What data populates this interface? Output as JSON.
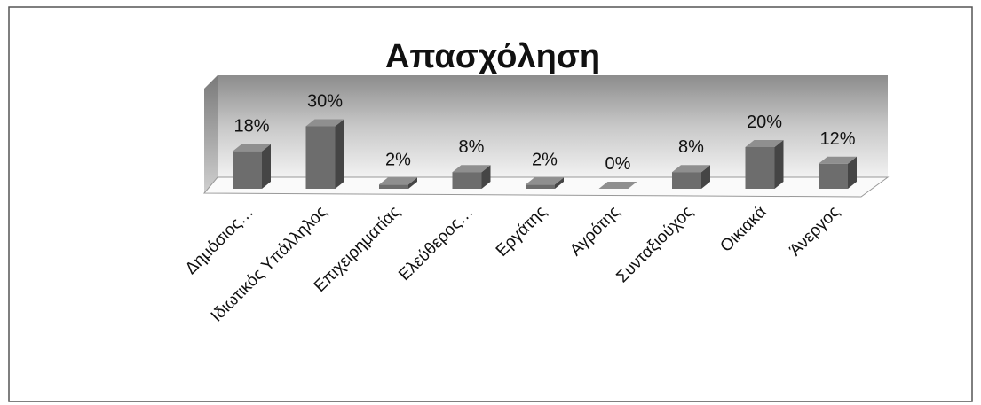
{
  "chart_data": {
    "type": "bar3d",
    "title": "Απασχόληση",
    "categories": [
      "Δημόσιος…",
      "Ιδιωτικός Υπάλληλος",
      "Επιχειρηματίας",
      "Ελεύθερος…",
      "Εργάτης",
      "Αγρότης",
      "Συνταξιούχος",
      "Οικιακά",
      "Άνεργος"
    ],
    "values": [
      18,
      30,
      2,
      8,
      2,
      0,
      8,
      20,
      12
    ],
    "value_labels": [
      "18%",
      "30%",
      "2%",
      "8%",
      "2%",
      "0%",
      "8%",
      "20%",
      "12%"
    ],
    "color": "#6d6d6d"
  }
}
